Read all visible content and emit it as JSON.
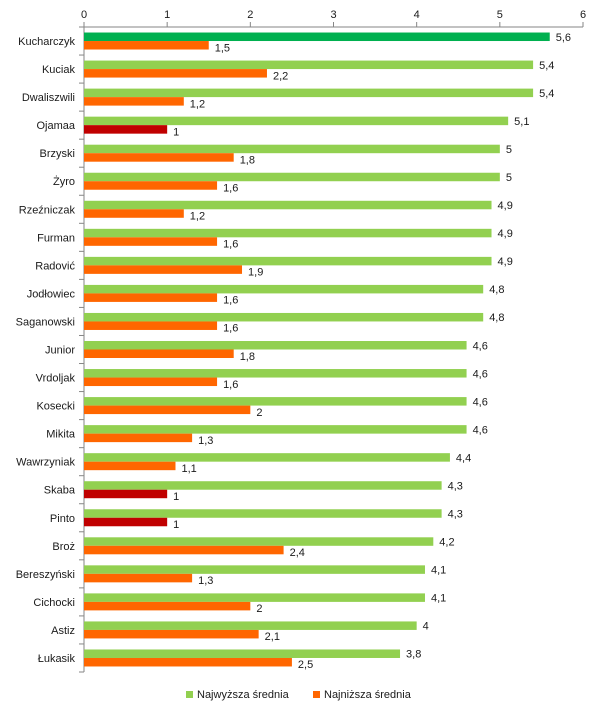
{
  "chart_data": {
    "type": "bar",
    "orientation": "horizontal",
    "categories": [
      "Kucharczyk",
      "Kuciak",
      "Dwaliszwili",
      "Ojamaa",
      "Brzyski",
      "Żyro",
      "Rzeźniczak",
      "Furman",
      "Radović",
      "Jodłowiec",
      "Saganowski",
      "Junior",
      "Vrdoljak",
      "Kosecki",
      "Mikita",
      "Wawrzyniak",
      "Skaba",
      "Pinto",
      "Broż",
      "Bereszyński",
      "Cichocki",
      "Astiz",
      "Łukasik"
    ],
    "series": [
      {
        "name": "Najwyższa średnia",
        "color": "#92d050",
        "values": [
          5.6,
          5.4,
          5.4,
          5.1,
          5,
          5,
          4.9,
          4.9,
          4.9,
          4.8,
          4.8,
          4.6,
          4.6,
          4.6,
          4.6,
          4.4,
          4.3,
          4.3,
          4.2,
          4.1,
          4.1,
          4,
          3.8
        ],
        "labels": [
          "5,6",
          "5,4",
          "5,4",
          "5,1",
          "5",
          "5",
          "4,9",
          "4,9",
          "4,9",
          "4,8",
          "4,8",
          "4,6",
          "4,6",
          "4,6",
          "4,6",
          "4,4",
          "4,3",
          "4,3",
          "4,2",
          "4,1",
          "4,1",
          "4",
          "3,8"
        ],
        "highlight": {
          "index": 0,
          "color": "#00b050"
        }
      },
      {
        "name": "Najniższa średnia",
        "color": "#ff6600",
        "values": [
          1.5,
          2.2,
          1.2,
          1,
          1.8,
          1.6,
          1.2,
          1.6,
          1.9,
          1.6,
          1.6,
          1.8,
          1.6,
          2,
          1.3,
          1.1,
          1,
          1,
          2.4,
          1.3,
          2,
          2.1,
          2.5
        ],
        "labels": [
          "1,5",
          "2,2",
          "1,2",
          "1",
          "1,8",
          "1,6",
          "1,2",
          "1,6",
          "1,9",
          "1,6",
          "1,6",
          "1,8",
          "1,6",
          "2",
          "1,3",
          "1,1",
          "1",
          "1",
          "2,4",
          "1,3",
          "2",
          "2,1",
          "2,5"
        ],
        "highlight": {
          "value": 1,
          "color": "#c00000"
        }
      }
    ],
    "x_axis": {
      "position": "top",
      "range": [
        0,
        6
      ],
      "ticks": [
        0,
        1,
        2,
        3,
        4,
        5,
        6
      ],
      "tick_labels": [
        "0",
        "1",
        "2",
        "3",
        "4",
        "5",
        "6"
      ]
    },
    "grid": false,
    "legend": "bottom",
    "title": "",
    "xlabel": "",
    "ylabel": ""
  }
}
